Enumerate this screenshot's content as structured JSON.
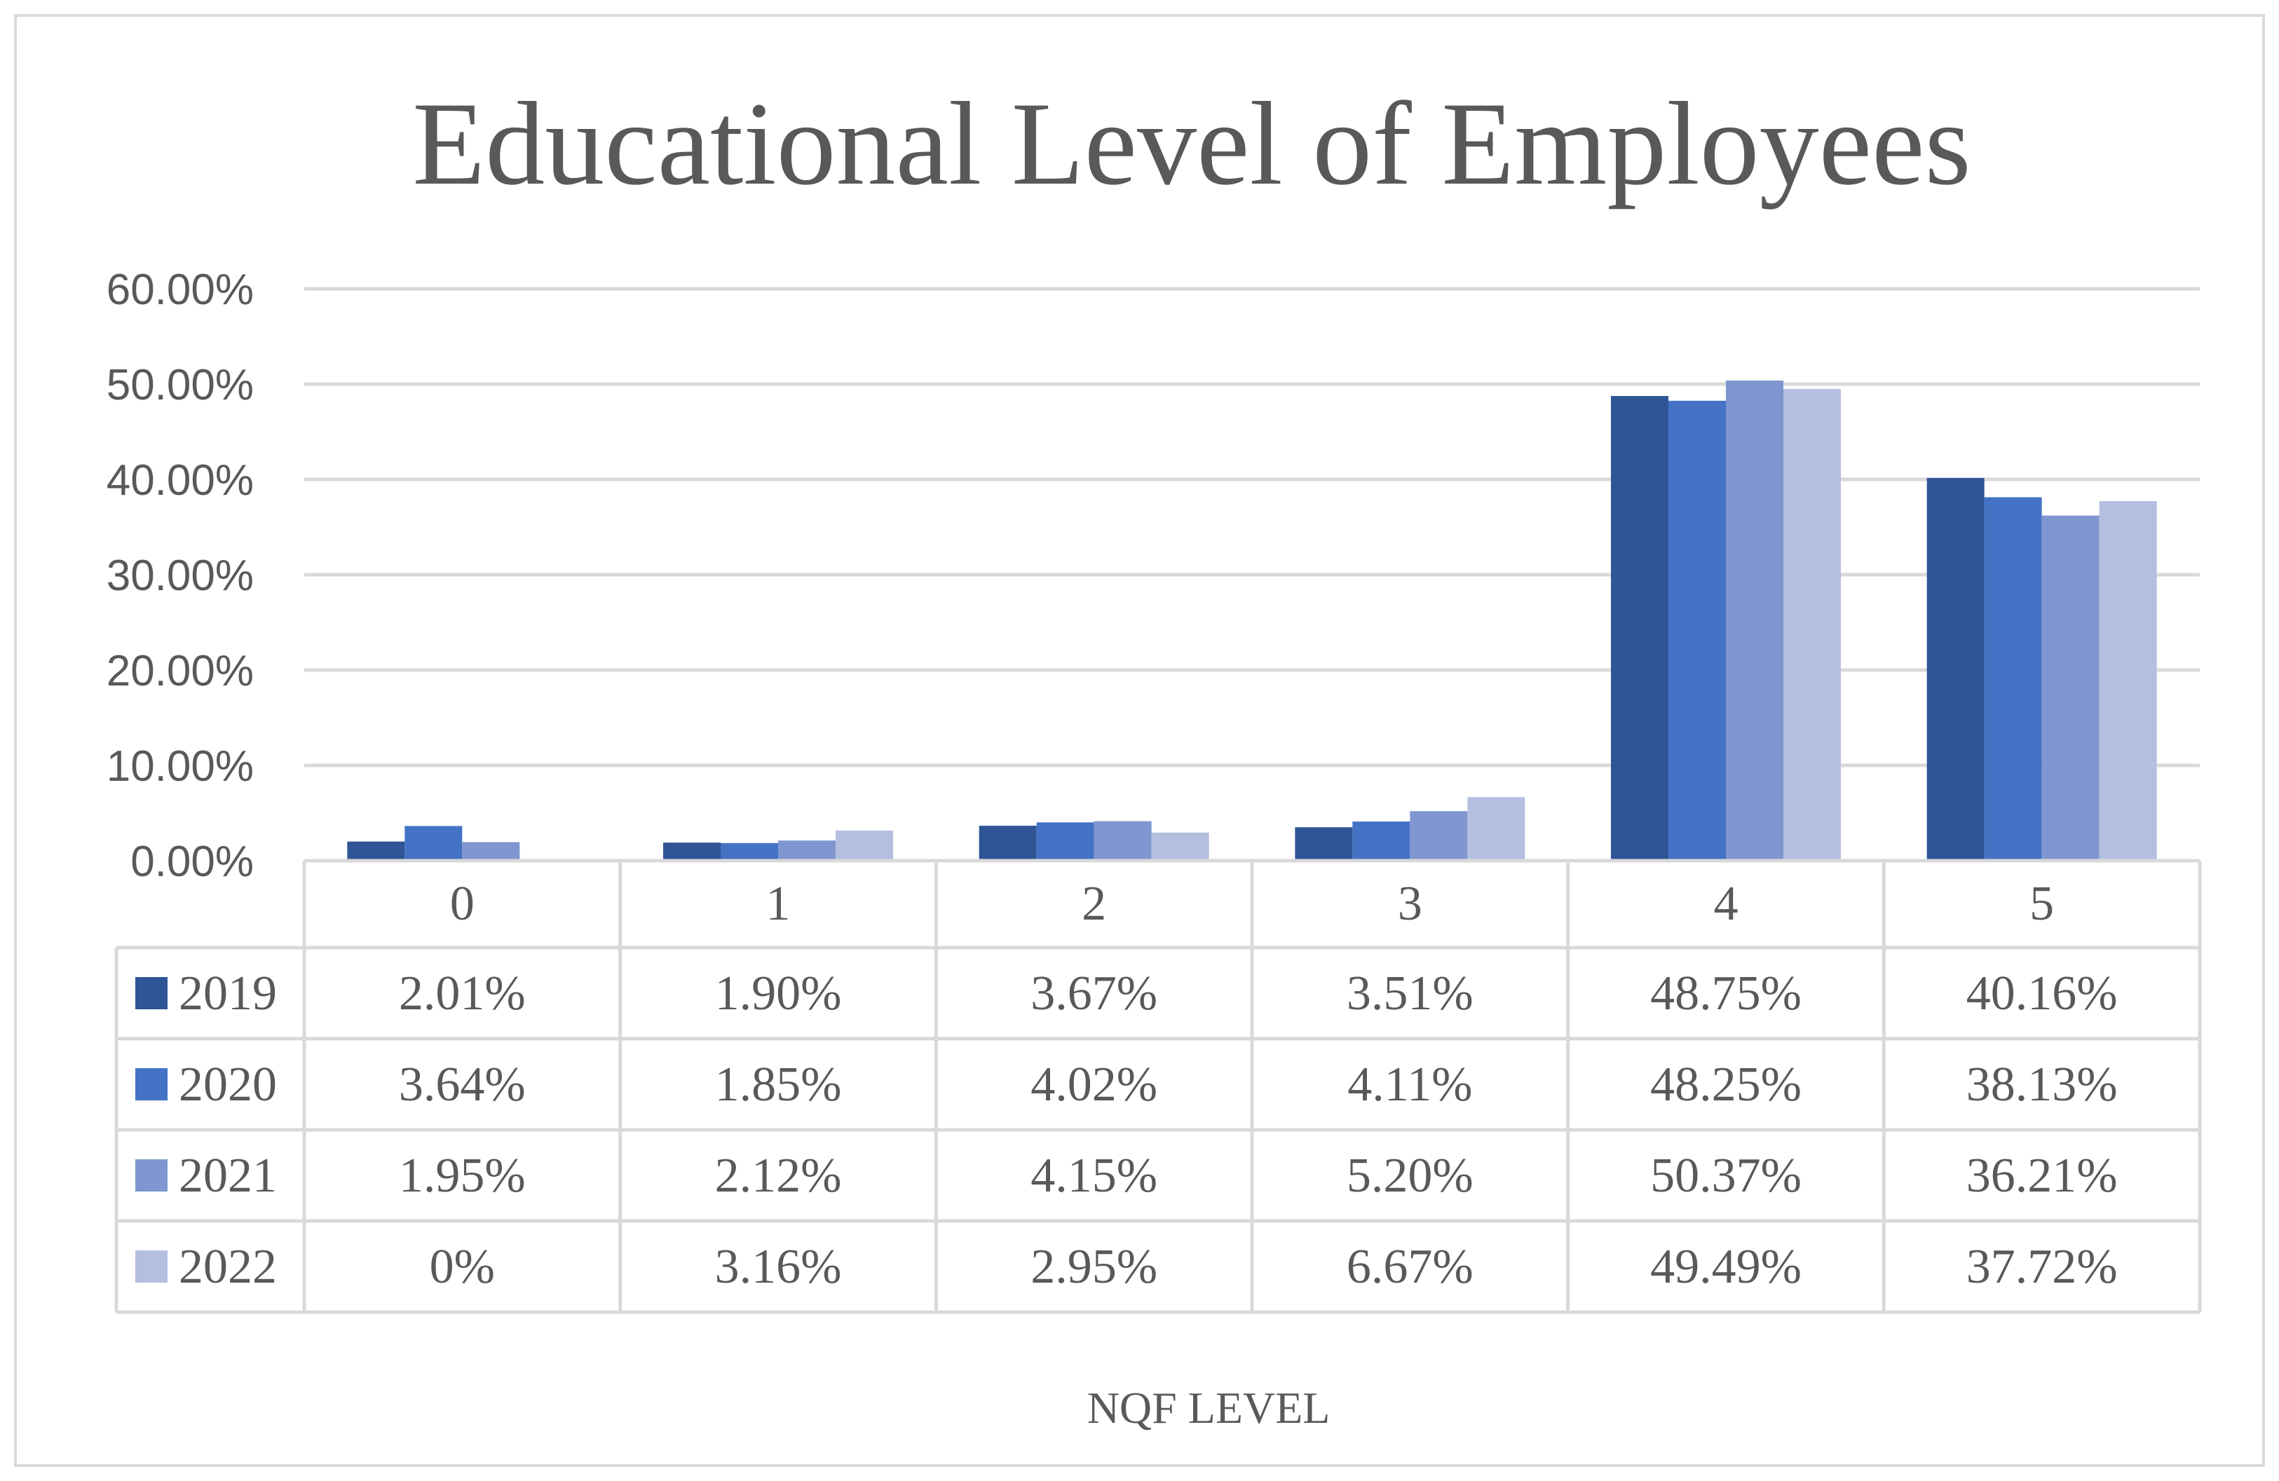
{
  "chart_data": {
    "type": "bar",
    "title": "Educational Level of Employees",
    "xlabel": "NQF LEVEL",
    "ylabel": "",
    "ylim": [
      0,
      0.6
    ],
    "yticks": [
      "0.00%",
      "10.00%",
      "20.00%",
      "30.00%",
      "40.00%",
      "50.00%",
      "60.00%"
    ],
    "grid": true,
    "legend": "data-table",
    "categories": [
      "0",
      "1",
      "2",
      "3",
      "4",
      "5"
    ],
    "series": [
      {
        "name": "2019",
        "color": "#2f5597",
        "values": [
          0.0201,
          0.019,
          0.0367,
          0.0351,
          0.4875,
          0.4016
        ],
        "labels": [
          "2.01%",
          "1.90%",
          "3.67%",
          "3.51%",
          "48.75%",
          "40.16%"
        ]
      },
      {
        "name": "2020",
        "color": "#4472c4",
        "values": [
          0.0364,
          0.0185,
          0.0402,
          0.0411,
          0.4825,
          0.3813
        ],
        "labels": [
          "3.64%",
          "1.85%",
          "4.02%",
          "4.11%",
          "48.25%",
          "38.13%"
        ]
      },
      {
        "name": "2021",
        "color": "#7f96d0",
        "values": [
          0.0195,
          0.0212,
          0.0415,
          0.052,
          0.5037,
          0.3621
        ],
        "labels": [
          "1.95%",
          "2.12%",
          "4.15%",
          "5.20%",
          "50.37%",
          "36.21%"
        ]
      },
      {
        "name": "2022",
        "color": "#b4bfe0",
        "values": [
          0,
          0.0316,
          0.0295,
          0.0667,
          0.4949,
          0.3772
        ],
        "labels": [
          "0%",
          "3.16%",
          "2.95%",
          "6.67%",
          "49.49%",
          "37.72%"
        ]
      }
    ]
  }
}
